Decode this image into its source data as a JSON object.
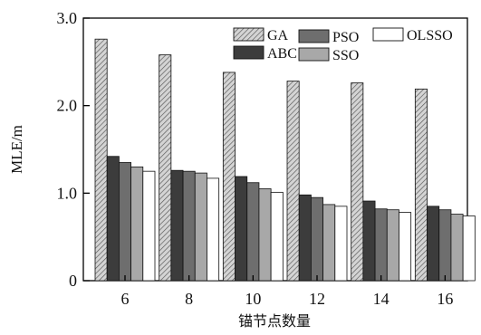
{
  "chart_data": {
    "type": "bar",
    "xlabel": "锚节点数量",
    "ylabel": "MLE/m",
    "categories": [
      "6",
      "8",
      "10",
      "12",
      "14",
      "16"
    ],
    "ylim": [
      0,
      3.0
    ],
    "yticks": [
      "0",
      "1.0",
      "2.0",
      "3.0"
    ],
    "grid": false,
    "legend_position": "top-right",
    "series": [
      {
        "name": "GA",
        "values": [
          2.76,
          2.58,
          2.38,
          2.28,
          2.26,
          2.19
        ],
        "color": "#c8c8c8",
        "pattern": "hatch"
      },
      {
        "name": "ABC",
        "values": [
          1.42,
          1.26,
          1.19,
          0.98,
          0.91,
          0.85
        ],
        "color": "#3c3c3c",
        "pattern": "solid"
      },
      {
        "name": "PSO",
        "values": [
          1.35,
          1.25,
          1.12,
          0.95,
          0.82,
          0.81
        ],
        "color": "#6e6e6e",
        "pattern": "solid"
      },
      {
        "name": "SSO",
        "values": [
          1.3,
          1.23,
          1.05,
          0.87,
          0.81,
          0.76
        ],
        "color": "#a8a8a8",
        "pattern": "solid"
      },
      {
        "name": "OLSSO",
        "values": [
          1.25,
          1.17,
          1.01,
          0.85,
          0.78,
          0.74
        ],
        "color": "#ffffff",
        "pattern": "solid"
      }
    ]
  }
}
